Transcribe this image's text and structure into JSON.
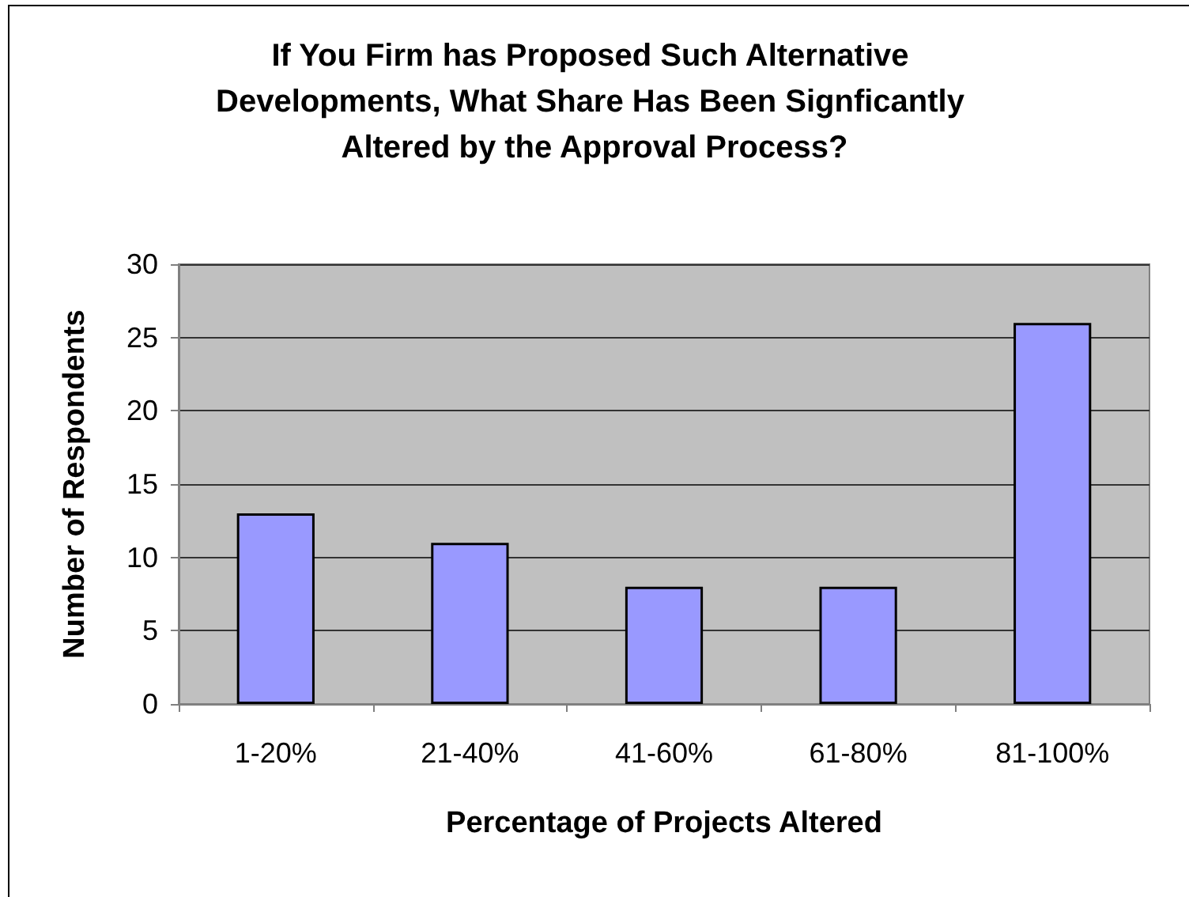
{
  "chart_data": {
    "type": "bar",
    "title": "If You Firm has Proposed Such Alternative Developments, What Share Has Been Signficantly Altered by the Approval Process?",
    "xlabel": "Percentage of Projects Altered",
    "ylabel": "Number of Respondents",
    "categories": [
      "1-20%",
      "21-40%",
      "41-60%",
      "61-80%",
      "81-100%"
    ],
    "values": [
      13,
      11,
      8,
      8,
      26
    ],
    "color": "#9999ff",
    "ylim": [
      0,
      30
    ],
    "yticks": [
      0,
      5,
      10,
      15,
      20,
      25,
      30
    ],
    "grid": "y"
  }
}
